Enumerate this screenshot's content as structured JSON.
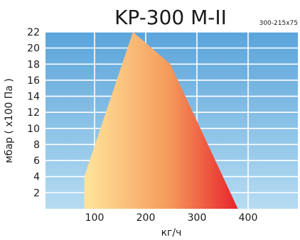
{
  "chart_data": {
    "type": "area",
    "title": "KP-300 M-II",
    "subtitle": "300-215x75",
    "xlabel": "кг/ч",
    "ylabel": "мбар ( х100 Па )",
    "xlim": [
      0,
      500
    ],
    "ylim": [
      0,
      22
    ],
    "x_ticks": [
      100,
      200,
      300,
      400
    ],
    "y_ticks": [
      2,
      4,
      6,
      8,
      10,
      12,
      14,
      16,
      18,
      20,
      22
    ],
    "grid": true,
    "polygon": [
      {
        "x": 80,
        "y": 0
      },
      {
        "x": 80,
        "y": 4
      },
      {
        "x": 175,
        "y": 22
      },
      {
        "x": 248,
        "y": 18
      },
      {
        "x": 380,
        "y": 0
      }
    ],
    "colors": {
      "background_top": "#5BA4DA",
      "background_bottom": "#B6DCF2",
      "gradient_start": "#FFE49B",
      "gradient_mid": "#F59A5B",
      "gradient_end": "#E8232B",
      "grid": "#ffffff"
    }
  }
}
